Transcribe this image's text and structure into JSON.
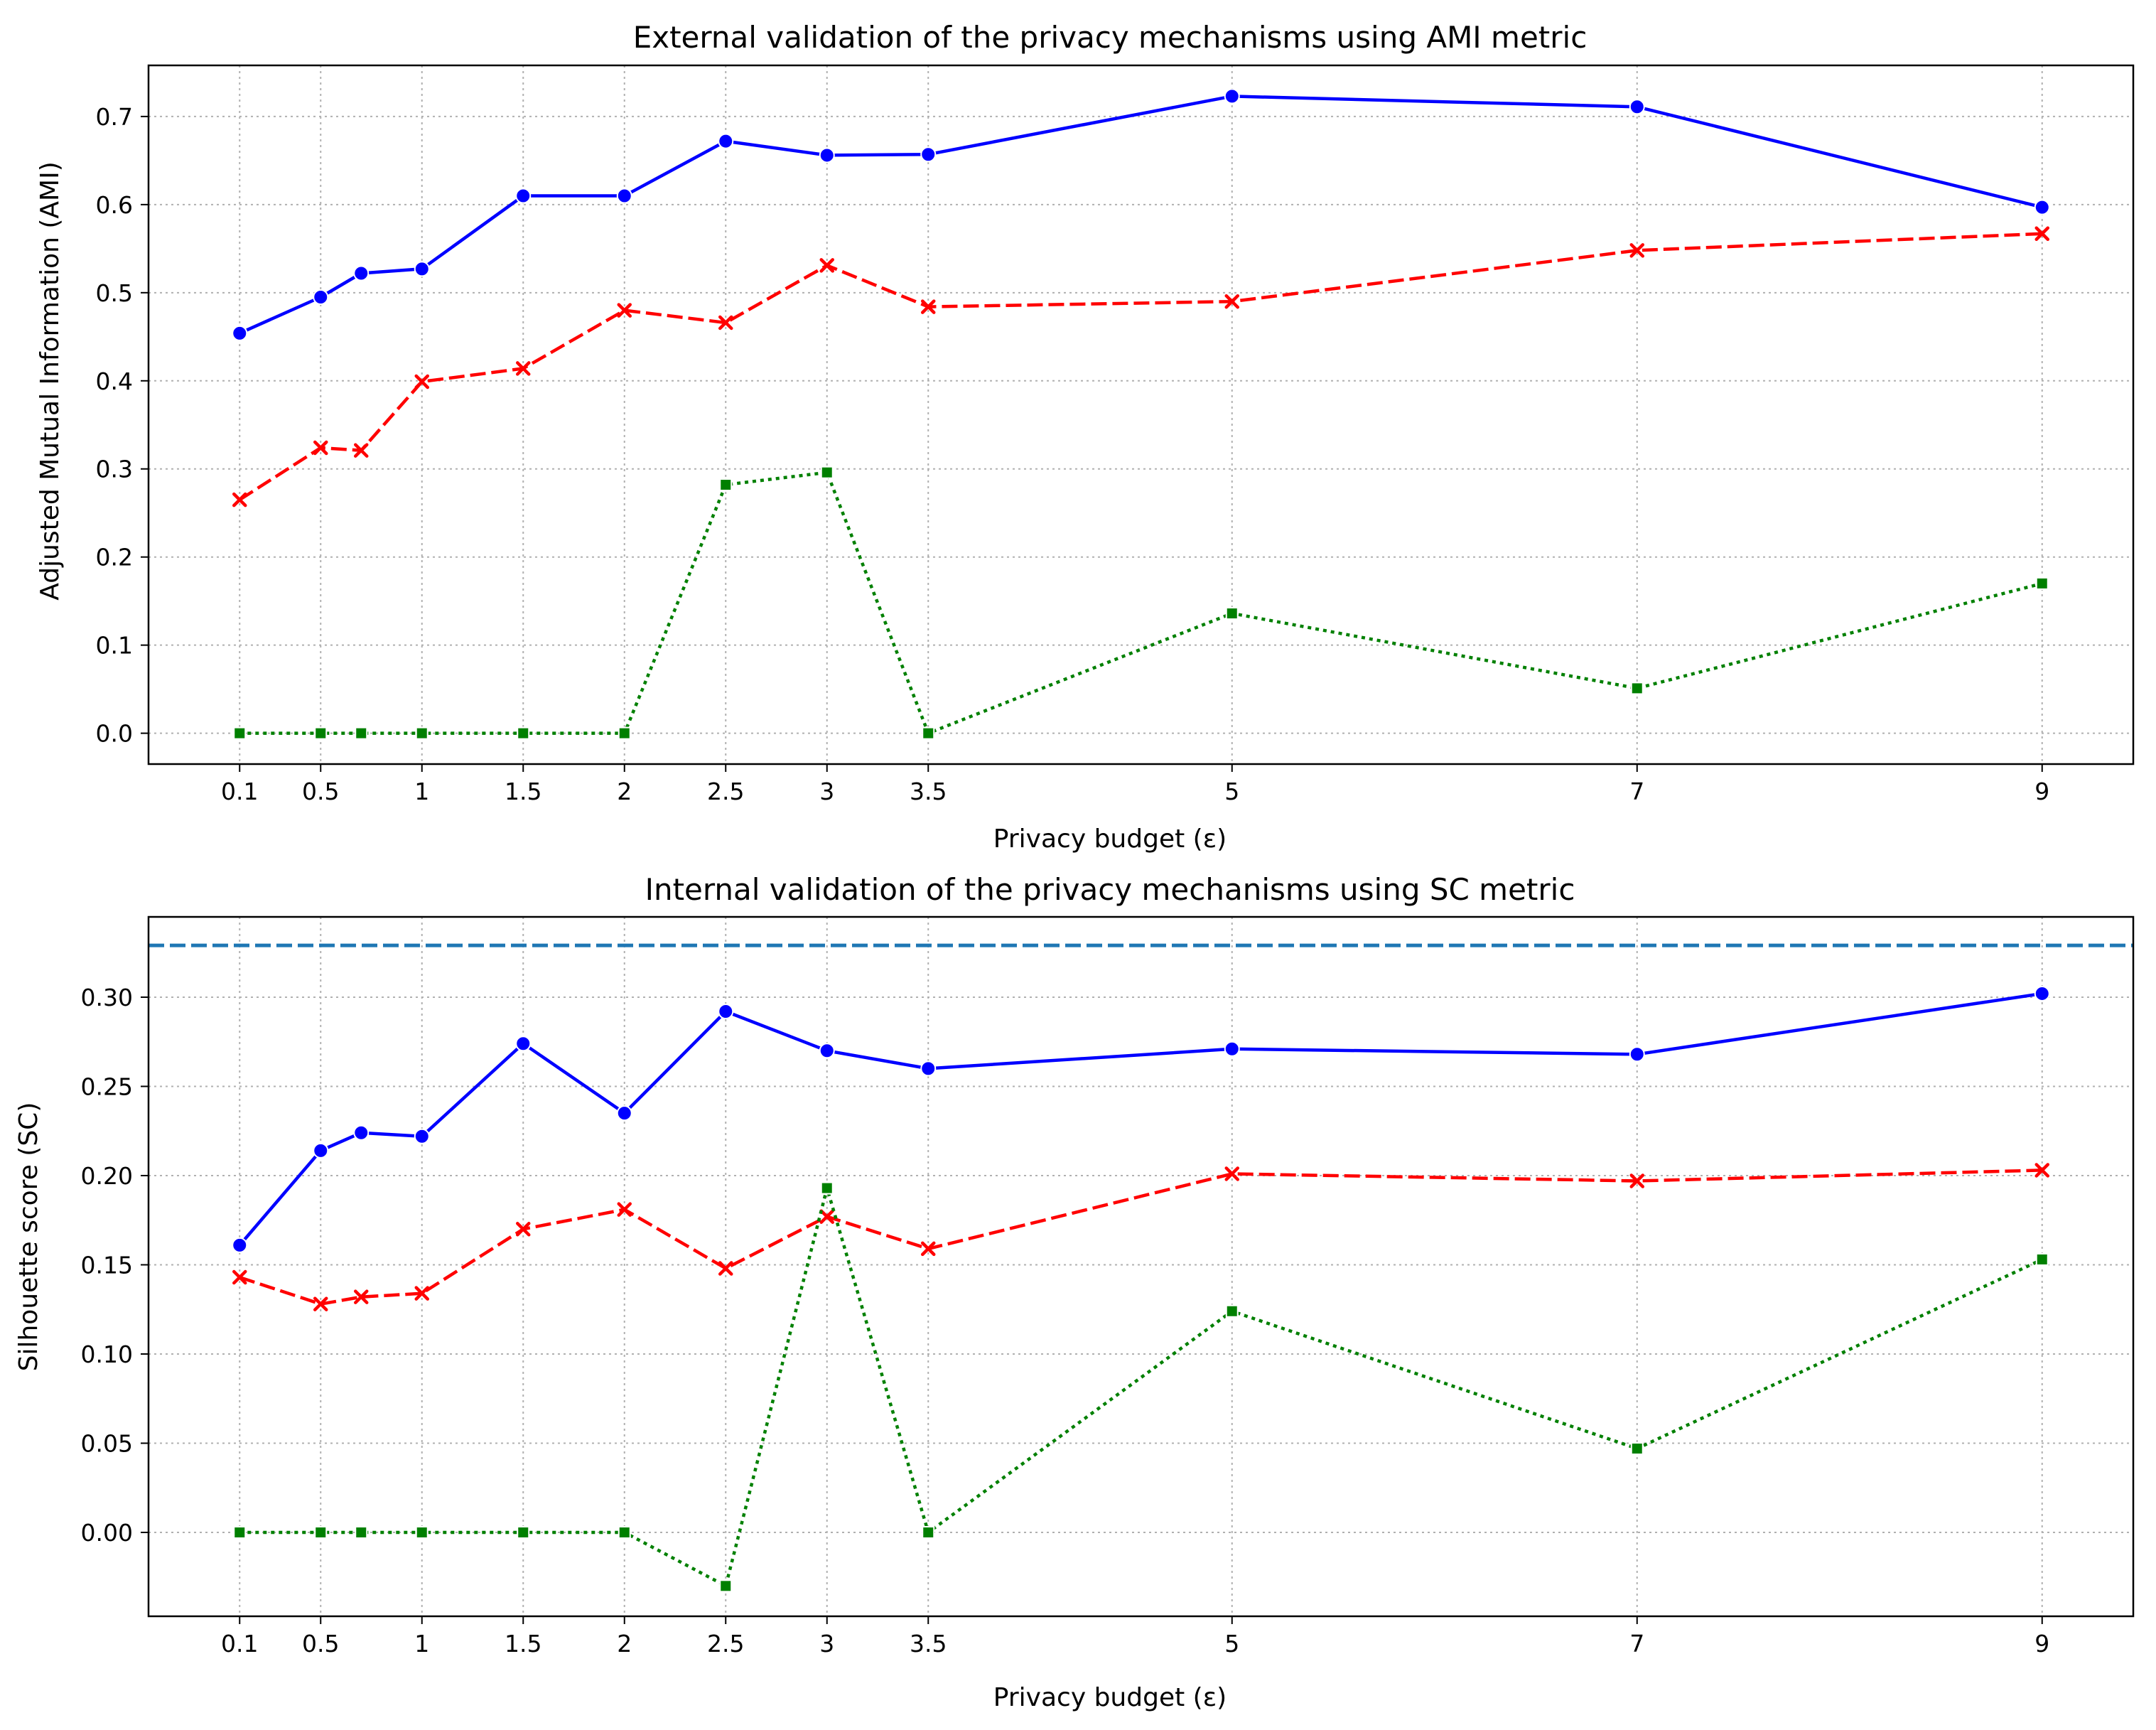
{
  "colors": {
    "series_1": "#0000ff",
    "series_2": "#ff0000",
    "series_3": "#008000",
    "reference": "#1f77b4",
    "grid": "#b0b0b0"
  },
  "chart_data": [
    {
      "type": "line",
      "title": "External validation of the privacy mechanisms using AMI metric",
      "xlabel": "Privacy budget (ε)",
      "ylabel": "Adjusted Mutual Information (AMI)",
      "x": [
        0.1,
        0.5,
        0.7,
        1,
        1.5,
        2,
        2.5,
        3,
        3.5,
        5,
        7,
        9
      ],
      "xticks": [
        0.1,
        0.5,
        1,
        1.5,
        2,
        2.5,
        3,
        3.5,
        5,
        7,
        9
      ],
      "xtick_labels": [
        "0.1",
        "0.5",
        "1",
        "1.5",
        "2",
        "2.5",
        "3",
        "3.5",
        "5",
        "7",
        "9"
      ],
      "xlim": [
        -0.35,
        9.45
      ],
      "ylim": [
        -0.035,
        0.758
      ],
      "yticks": [
        0.0,
        0.1,
        0.2,
        0.3,
        0.4,
        0.5,
        0.6,
        0.7
      ],
      "ytick_labels": [
        "0.0",
        "0.1",
        "0.2",
        "0.3",
        "0.4",
        "0.5",
        "0.6",
        "0.7"
      ],
      "grid": true,
      "legend": "none",
      "series": [
        {
          "color": "#0000ff",
          "style": "solid",
          "marker": "circle",
          "values": [
            0.454,
            0.495,
            0.522,
            0.527,
            0.61,
            0.61,
            0.672,
            0.656,
            0.657,
            0.723,
            0.711,
            0.597
          ]
        },
        {
          "color": "#ff0000",
          "style": "dashed",
          "marker": "x",
          "values": [
            0.265,
            0.324,
            0.321,
            0.399,
            0.414,
            0.48,
            0.466,
            0.531,
            0.484,
            0.49,
            0.548,
            0.567
          ]
        },
        {
          "color": "#008000",
          "style": "dotted",
          "marker": "square",
          "values": [
            0.0,
            0.0,
            0.0,
            0.0,
            0.0,
            0.0,
            0.282,
            0.296,
            0.0,
            0.136,
            0.051,
            0.17
          ]
        }
      ],
      "hlines": []
    },
    {
      "type": "line",
      "title": "Internal validation of the privacy mechanisms using SC metric",
      "xlabel": "Privacy budget (ε)",
      "ylabel": "Silhouette score (SC)",
      "x": [
        0.1,
        0.5,
        0.7,
        1,
        1.5,
        2,
        2.5,
        3,
        3.5,
        5,
        7,
        9
      ],
      "xticks": [
        0.1,
        0.5,
        1,
        1.5,
        2,
        2.5,
        3,
        3.5,
        5,
        7,
        9
      ],
      "xtick_labels": [
        "0.1",
        "0.5",
        "1",
        "1.5",
        "2",
        "2.5",
        "3",
        "3.5",
        "5",
        "7",
        "9"
      ],
      "xlim": [
        -0.35,
        9.45
      ],
      "ylim": [
        -0.047,
        0.345
      ],
      "yticks": [
        0.0,
        0.05,
        0.1,
        0.15,
        0.2,
        0.25,
        0.3
      ],
      "ytick_labels": [
        "0.00",
        "0.05",
        "0.10",
        "0.15",
        "0.20",
        "0.25",
        "0.30"
      ],
      "grid": true,
      "legend": "none",
      "series": [
        {
          "color": "#0000ff",
          "style": "solid",
          "marker": "circle",
          "values": [
            0.161,
            0.214,
            0.224,
            0.222,
            0.274,
            0.235,
            0.292,
            0.27,
            0.26,
            0.271,
            0.268,
            0.302
          ]
        },
        {
          "color": "#ff0000",
          "style": "dashed",
          "marker": "x",
          "values": [
            0.143,
            0.128,
            0.132,
            0.134,
            0.17,
            0.181,
            0.148,
            0.177,
            0.159,
            0.201,
            0.197,
            0.203
          ]
        },
        {
          "color": "#008000",
          "style": "dotted",
          "marker": "square",
          "values": [
            0.0,
            0.0,
            0.0,
            0.0,
            0.0,
            0.0,
            -0.03,
            0.193,
            0.0,
            0.124,
            0.047,
            0.153
          ]
        }
      ],
      "hlines": [
        {
          "y": 0.329,
          "color": "#1f77b4",
          "style": "dashed"
        }
      ]
    }
  ]
}
